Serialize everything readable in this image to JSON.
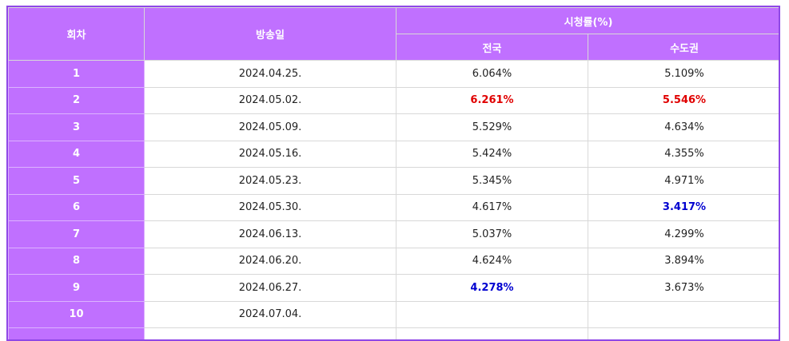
{
  "header": {
    "episode": "회차",
    "air_date": "방송일",
    "ratings": "시청률(%)",
    "nationwide": "전국",
    "capital": "수도권"
  },
  "colors": {
    "header_bg": "#c070ff",
    "border_accent": "#8f48e6",
    "highest": "#e00000",
    "lowest": "#0000d0"
  },
  "rows": [
    {
      "ep": "1",
      "date": "2024.04.25.",
      "nation": "6.064%",
      "capital": "5.109%",
      "nation_mark": "",
      "capital_mark": ""
    },
    {
      "ep": "2",
      "date": "2024.05.02.",
      "nation": "6.261%",
      "capital": "5.546%",
      "nation_mark": "highest",
      "capital_mark": "highest"
    },
    {
      "ep": "3",
      "date": "2024.05.09.",
      "nation": "5.529%",
      "capital": "4.634%",
      "nation_mark": "",
      "capital_mark": ""
    },
    {
      "ep": "4",
      "date": "2024.05.16.",
      "nation": "5.424%",
      "capital": "4.355%",
      "nation_mark": "",
      "capital_mark": ""
    },
    {
      "ep": "5",
      "date": "2024.05.23.",
      "nation": "5.345%",
      "capital": "4.971%",
      "nation_mark": "",
      "capital_mark": ""
    },
    {
      "ep": "6",
      "date": "2024.05.30.",
      "nation": "4.617%",
      "capital": "3.417%",
      "nation_mark": "",
      "capital_mark": "lowest"
    },
    {
      "ep": "7",
      "date": "2024.06.13.",
      "nation": "5.037%",
      "capital": "4.299%",
      "nation_mark": "",
      "capital_mark": ""
    },
    {
      "ep": "8",
      "date": "2024.06.20.",
      "nation": "4.624%",
      "capital": "3.894%",
      "nation_mark": "",
      "capital_mark": ""
    },
    {
      "ep": "9",
      "date": "2024.06.27.",
      "nation": "4.278%",
      "capital": "3.673%",
      "nation_mark": "lowest",
      "capital_mark": ""
    },
    {
      "ep": "10",
      "date": "2024.07.04.",
      "nation": "",
      "capital": "",
      "nation_mark": "",
      "capital_mark": ""
    },
    {
      "ep": "",
      "date": "",
      "nation": "",
      "capital": "",
      "nation_mark": "",
      "capital_mark": ""
    }
  ]
}
